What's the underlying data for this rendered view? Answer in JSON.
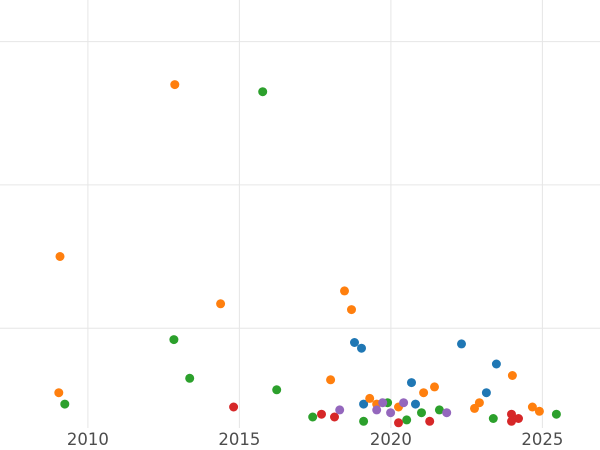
{
  "figure": {
    "background": "#ffffff"
  },
  "chart_data": {
    "type": "scatter",
    "title": "",
    "xlabel": "",
    "ylabel": "",
    "x_ticks": [
      {
        "value": 2010,
        "label": "2010"
      },
      {
        "value": 2015,
        "label": "2015"
      },
      {
        "value": 2020,
        "label": "2020"
      },
      {
        "value": 2025,
        "label": "2025"
      }
    ],
    "x_range": [
      2007.1,
      2026.9
    ],
    "y_range": [
      0.15,
      3.29
    ],
    "y_gridlines": [
      1,
      2,
      3
    ],
    "grid": true,
    "legend": "none",
    "y_tick_labels_visible": false,
    "marker_radius": 4.5,
    "colors": {
      "grid": "#e6e6e6",
      "tick_label": "#4d4d4d",
      "background": "#ffffff",
      "series_blue": "#1f77b4",
      "series_orange": "#ff7f0e",
      "series_green": "#2ca02c",
      "series_red": "#d62728",
      "series_purple": "#9467bd"
    },
    "series": [
      {
        "name": "blue",
        "color": "#1f77b4",
        "points": [
          [
            2018.8,
            0.9
          ],
          [
            2019.03,
            0.86
          ],
          [
            2022.33,
            0.89
          ],
          [
            2023.48,
            0.75
          ],
          [
            2020.68,
            0.62
          ],
          [
            2020.81,
            0.47
          ],
          [
            2019.1,
            0.47
          ],
          [
            2023.15,
            0.55
          ]
        ]
      },
      {
        "name": "orange",
        "color": "#ff7f0e",
        "points": [
          [
            2012.87,
            2.7
          ],
          [
            2009.08,
            1.5
          ],
          [
            2014.38,
            1.17
          ],
          [
            2018.47,
            1.26
          ],
          [
            2018.7,
            1.13
          ],
          [
            2018.01,
            0.64
          ],
          [
            2009.04,
            0.55
          ],
          [
            2021.44,
            0.59
          ],
          [
            2021.08,
            0.55
          ],
          [
            2024.01,
            0.67
          ],
          [
            2019.3,
            0.51
          ],
          [
            2019.53,
            0.47
          ],
          [
            2020.25,
            0.45
          ],
          [
            2022.92,
            0.48
          ],
          [
            2022.76,
            0.44
          ],
          [
            2024.67,
            0.45
          ],
          [
            2024.9,
            0.42
          ]
        ]
      },
      {
        "name": "green",
        "color": "#2ca02c",
        "points": [
          [
            2015.77,
            2.65
          ],
          [
            2012.84,
            0.92
          ],
          [
            2013.36,
            0.65
          ],
          [
            2009.24,
            0.47
          ],
          [
            2016.23,
            0.57
          ],
          [
            2017.42,
            0.38
          ],
          [
            2019.89,
            0.48
          ],
          [
            2020.52,
            0.36
          ],
          [
            2021.01,
            0.41
          ],
          [
            2021.6,
            0.43
          ],
          [
            2023.38,
            0.37
          ],
          [
            2025.46,
            0.4
          ],
          [
            2019.1,
            0.35
          ]
        ]
      },
      {
        "name": "red",
        "color": "#d62728",
        "points": [
          [
            2014.81,
            0.45
          ],
          [
            2017.71,
            0.4
          ],
          [
            2018.14,
            0.38
          ],
          [
            2020.25,
            0.34
          ],
          [
            2023.98,
            0.4
          ],
          [
            2024.21,
            0.37
          ],
          [
            2023.98,
            0.35
          ],
          [
            2021.28,
            0.35
          ]
        ]
      },
      {
        "name": "purple",
        "color": "#9467bd",
        "points": [
          [
            2018.31,
            0.43
          ],
          [
            2019.73,
            0.48
          ],
          [
            2019.99,
            0.41
          ],
          [
            2020.42,
            0.48
          ],
          [
            2019.53,
            0.43
          ],
          [
            2021.84,
            0.41
          ]
        ]
      }
    ]
  }
}
